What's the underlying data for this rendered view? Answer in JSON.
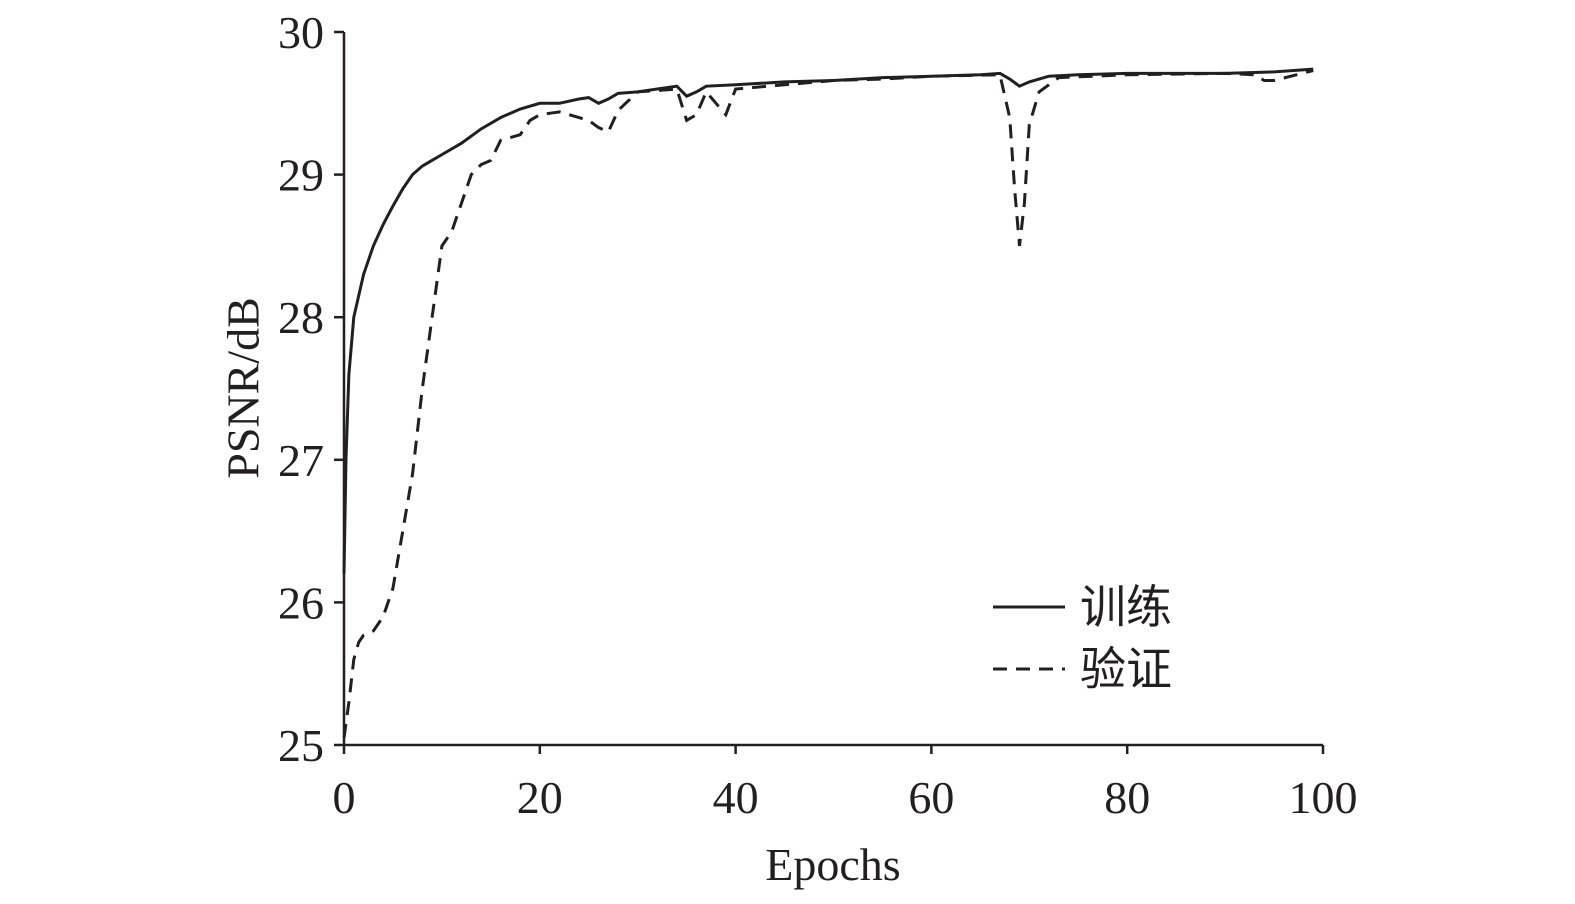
{
  "chart_data": {
    "type": "line",
    "x_label": "Epochs",
    "y_label": "PSNR/dB",
    "xlim": [
      0,
      100
    ],
    "xticks": [
      0,
      20,
      40,
      60,
      80,
      100
    ],
    "ylim": [
      25,
      30
    ],
    "yticks": [
      25,
      26,
      27,
      28,
      29,
      30
    ],
    "series": [
      {
        "name": "训练",
        "color": "#231f20",
        "line_style": "solid",
        "x": [
          0,
          0.2,
          0.5,
          1,
          2,
          3,
          4,
          5,
          6,
          7,
          8,
          9,
          10,
          12,
          14,
          16,
          18,
          20,
          22,
          24,
          25,
          26,
          27,
          28,
          30,
          32,
          34,
          35,
          36,
          37,
          40,
          45,
          50,
          55,
          60,
          65,
          67,
          68,
          69,
          70,
          72,
          75,
          80,
          90,
          95,
          99
        ],
        "values": [
          26.2,
          27.0,
          27.6,
          28.0,
          28.3,
          28.5,
          28.65,
          28.78,
          28.9,
          29.0,
          29.06,
          29.1,
          29.14,
          29.22,
          29.32,
          29.4,
          29.46,
          29.5,
          29.5,
          29.53,
          29.54,
          29.5,
          29.53,
          29.57,
          29.58,
          29.6,
          29.62,
          29.55,
          29.58,
          29.62,
          29.63,
          29.65,
          29.66,
          29.68,
          29.69,
          29.7,
          29.71,
          29.67,
          29.62,
          29.65,
          29.69,
          29.7,
          29.71,
          29.71,
          29.72,
          29.74
        ]
      },
      {
        "name": "验证",
        "color": "#231f20",
        "line_style": "dashed",
        "x": [
          0,
          0.5,
          1,
          1.5,
          2,
          3,
          4,
          5,
          6,
          7,
          8,
          9,
          10,
          11,
          12,
          13,
          14,
          15,
          16,
          18,
          19,
          20,
          22,
          24,
          25,
          26,
          27,
          28,
          30,
          34,
          35,
          36,
          37,
          38,
          39,
          40,
          45,
          50,
          55,
          60,
          67,
          68,
          68.5,
          69,
          69.5,
          70,
          71,
          73,
          80,
          90,
          93,
          94,
          95,
          99
        ],
        "values": [
          25.05,
          25.3,
          25.6,
          25.72,
          25.77,
          25.8,
          25.9,
          26.1,
          26.5,
          26.9,
          27.5,
          28.0,
          28.5,
          28.6,
          28.8,
          29.0,
          29.07,
          29.1,
          29.24,
          29.28,
          29.38,
          29.42,
          29.44,
          29.4,
          29.38,
          29.33,
          29.3,
          29.45,
          29.58,
          29.6,
          29.38,
          29.42,
          29.58,
          29.5,
          29.42,
          29.6,
          29.63,
          29.66,
          29.67,
          29.69,
          29.7,
          29.4,
          28.9,
          28.5,
          28.8,
          29.35,
          29.58,
          29.68,
          29.7,
          29.71,
          29.7,
          29.66,
          29.66,
          29.73
        ]
      }
    ]
  }
}
